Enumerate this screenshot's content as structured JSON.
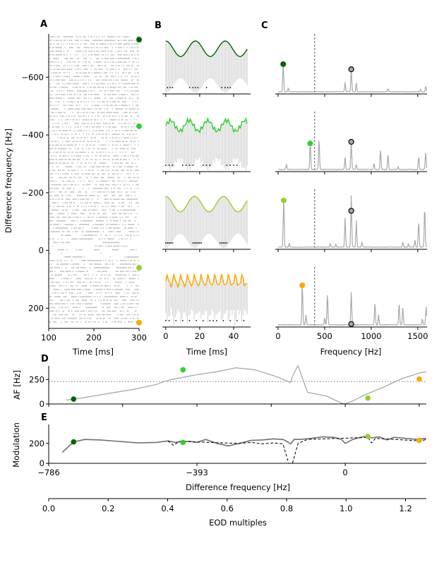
{
  "figure": {
    "panel_labels": [
      "A",
      "B",
      "C",
      "D",
      "E"
    ],
    "colors": {
      "dark_green": "#006400",
      "lime_green": "#32cd32",
      "yellow_green": "#9acd32",
      "orange": "#ffa500",
      "gray_line": "#a9a9a9",
      "light_gray": "#c8c8c8",
      "black": "#000000"
    }
  },
  "chart_data": [
    {
      "panel": "A",
      "type": "scatter",
      "title": "",
      "xlabel": "Time [ms]",
      "ylabel": "Difference frequency [Hz]",
      "xlim": [
        100,
        300
      ],
      "ylim": [
        270,
        -750
      ],
      "xticks": [
        "100",
        "200",
        "300"
      ],
      "yticks": [
        "−600",
        "−400",
        "−200",
        "0",
        "200"
      ],
      "ytick_values": [
        -600,
        -400,
        -200,
        0,
        200
      ],
      "description": "Spike raster: rows of spike times at each difference frequency",
      "marked_rows": [
        {
          "df": -730,
          "color": "dark_green"
        },
        {
          "df": -430,
          "color": "lime_green"
        },
        {
          "df": 60,
          "color": "yellow_green"
        },
        {
          "df": 250,
          "color": "orange"
        }
      ]
    },
    {
      "panel": "B",
      "type": "line",
      "xlabel": "Time [ms]",
      "xlim": [
        -2,
        50
      ],
      "xticks": [
        "0",
        "20",
        "40"
      ],
      "xtick_values": [
        0,
        20,
        40
      ],
      "rows": [
        {
          "color": "dark_green",
          "beat_period_ms": 17.5,
          "envelope": "smooth",
          "spike_groups": [
            [
              1,
              2.5,
              4
            ],
            [
              14,
              16,
              17.5,
              19
            ],
            [
              24
            ],
            [
              33,
              35,
              36.5,
              38
            ]
          ]
        },
        {
          "color": "lime_green",
          "beat_period_ms": 11,
          "envelope": "jagged",
          "spike_groups": [
            [
              0,
              2,
              4
            ],
            [
              10,
              12,
              14,
              16
            ],
            [
              22,
              24,
              26
            ],
            [
              36,
              38,
              40,
              42
            ]
          ]
        },
        {
          "color": "yellow_green",
          "beat_period_ms": 17,
          "envelope": "smooth",
          "spike_groups": [
            [
              0,
              1,
              2,
              3,
              4
            ],
            [
              16,
              17,
              18,
              19,
              20,
              21
            ],
            [
              32,
              33,
              34,
              35,
              36
            ]
          ]
        },
        {
          "color": "orange",
          "beat_period_ms": 4,
          "envelope": "jagged",
          "spike_groups": [
            [
              0,
              2
            ],
            [
              6
            ],
            [
              10
            ],
            [
              14
            ],
            [
              18
            ],
            [
              22
            ],
            [
              26,
              28
            ],
            [
              30
            ],
            [
              34
            ],
            [
              38
            ],
            [
              42
            ],
            [
              46
            ]
          ]
        }
      ]
    },
    {
      "panel": "C",
      "type": "line",
      "xlabel": "Frequency [Hz]",
      "xlim": [
        -30,
        1600
      ],
      "xticks": [
        "0",
        "500",
        "1000",
        "1500"
      ],
      "xtick_values": [
        0,
        500,
        1000,
        1500
      ],
      "vline_hz": 393,
      "rows": [
        {
          "color": "dark_green",
          "marker_hz": 55,
          "marker_height": 0.55,
          "eod_marker_hz": 786,
          "eod_marker_height": 0.45,
          "peaks": [
            [
              55,
              0.55
            ],
            [
              110,
              0.07
            ],
            [
              720,
              0.18
            ],
            [
              786,
              0.45
            ],
            [
              840,
              0.17
            ],
            [
              1180,
              0.06
            ],
            [
              1530,
              0.05
            ],
            [
              1585,
              0.11
            ]
          ]
        },
        {
          "color": "lime_green",
          "marker_hz": 345,
          "marker_height": 0.52,
          "eod_marker_hz": 786,
          "eod_marker_height": 0.55,
          "peaks": [
            [
              90,
              0.1
            ],
            [
              345,
              0.52
            ],
            [
              440,
              0.6
            ],
            [
              720,
              0.23
            ],
            [
              786,
              0.55
            ],
            [
              840,
              0.1
            ],
            [
              1030,
              0.12
            ],
            [
              1100,
              0.4
            ],
            [
              1180,
              0.3
            ],
            [
              1290,
              0.05
            ],
            [
              1510,
              0.25
            ],
            [
              1585,
              0.33
            ]
          ]
        },
        {
          "color": "yellow_green",
          "marker_hz": 60,
          "marker_height": 0.92,
          "eod_marker_hz": 786,
          "eod_marker_height": 0.72,
          "peaks": [
            [
              60,
              0.92
            ],
            [
              120,
              0.08
            ],
            [
              560,
              0.07
            ],
            [
              620,
              0.05
            ],
            [
              720,
              0.57
            ],
            [
              786,
              1.0
            ],
            [
              840,
              0.52
            ],
            [
              900,
              0.1
            ],
            [
              1340,
              0.1
            ],
            [
              1400,
              0.07
            ],
            [
              1470,
              0.14
            ],
            [
              1510,
              0.5
            ],
            [
              1575,
              0.8
            ]
          ]
        },
        {
          "color": "orange",
          "marker_hz": 260,
          "marker_height": 0.78,
          "eod_marker_hz": 786,
          "eod_marker_height": 0.03,
          "peaks": [
            [
              260,
              0.8
            ],
            [
              300,
              0.19
            ],
            [
              500,
              0.13
            ],
            [
              530,
              0.62
            ],
            [
              786,
              0.63
            ],
            [
              1040,
              0.44
            ],
            [
              1080,
              0.2
            ],
            [
              1300,
              0.42
            ],
            [
              1340,
              0.35
            ],
            [
              1550,
              0.12
            ],
            [
              1590,
              0.35
            ]
          ]
        }
      ]
    },
    {
      "panel": "D",
      "type": "line",
      "ylabel": "AF [Hz]",
      "xlim": [
        -786,
        215
      ],
      "ylim": [
        0,
        390
      ],
      "yticks": [
        "0",
        "250"
      ],
      "ytick_values": [
        0,
        250
      ],
      "hline": 230,
      "series": [
        {
          "name": "AF",
          "x": [
            -740,
            -700,
            -640,
            -560,
            -500,
            -480,
            -460,
            -420,
            -393,
            -340,
            -290,
            -240,
            -190,
            -145,
            -140,
            -130,
            -125,
            -100,
            -50,
            -10,
            0,
            20,
            50,
            100,
            150,
            200,
            215
          ],
          "y": [
            40,
            60,
            100,
            150,
            200,
            230,
            250,
            280,
            300,
            330,
            370,
            350,
            290,
            220,
            280,
            360,
            390,
            120,
            80,
            10,
            0,
            30,
            90,
            170,
            260,
            320,
            330
          ]
        }
      ],
      "markers": [
        {
          "x": -720,
          "y": 50,
          "color": "dark_green"
        },
        {
          "x": -430,
          "y": 350,
          "color": "lime_green"
        },
        {
          "x": 60,
          "y": 60,
          "color": "yellow_green"
        },
        {
          "x": 240,
          "y": 255,
          "color": "orange"
        }
      ]
    },
    {
      "panel": "E",
      "type": "line",
      "ylabel": "Modulation",
      "xlabel": "Difference frequency [Hz]",
      "xlim": [
        -786,
        215
      ],
      "ylim": [
        0,
        390
      ],
      "xticks": [
        "−786",
        "−393",
        "0"
      ],
      "xtick_values": [
        -786,
        -393,
        0
      ],
      "yticks": [
        "0",
        "200"
      ],
      "ytick_values": [
        0,
        200
      ],
      "series": [
        {
          "name": "solid",
          "style": "solid",
          "x": [
            -750,
            -720,
            -690,
            -650,
            -600,
            -550,
            -500,
            -470,
            -450,
            -430,
            -410,
            -393,
            -370,
            -340,
            -310,
            -280,
            -250,
            -220,
            -190,
            -165,
            -155,
            -145,
            -135,
            -120,
            -90,
            -60,
            -30,
            -10,
            0,
            20,
            50,
            70,
            90,
            110,
            130,
            160,
            190,
            215
          ],
          "y": [
            110,
            215,
            240,
            235,
            220,
            205,
            210,
            225,
            210,
            220,
            220,
            210,
            240,
            200,
            175,
            200,
            230,
            235,
            245,
            240,
            220,
            195,
            240,
            240,
            250,
            265,
            260,
            240,
            200,
            240,
            270,
            255,
            265,
            235,
            260,
            250,
            240,
            250
          ]
        },
        {
          "name": "dashed",
          "style": "dashed",
          "x": [
            -470,
            -455,
            -440,
            -280,
            -250,
            -220,
            -190,
            -165,
            -150,
            -140,
            -125,
            -100,
            60,
            70,
            80,
            200,
            215
          ],
          "y": [
            225,
            180,
            220,
            200,
            210,
            195,
            205,
            195,
            0,
            0,
            200,
            240,
            260,
            205,
            250,
            225,
            240
          ]
        }
      ],
      "markers": [
        {
          "x": -720,
          "y": 215,
          "color": "dark_green"
        },
        {
          "x": -430,
          "y": 210,
          "color": "lime_green"
        },
        {
          "x": 60,
          "y": 270,
          "color": "yellow_green"
        },
        {
          "x": 240,
          "y": 230,
          "color": "orange"
        }
      ]
    },
    {
      "panel": "secondary-axis",
      "type": "line",
      "xlabel": "EOD multiples",
      "xlim": [
        0,
        1.27
      ],
      "xticks": [
        "0.0",
        "0.2",
        "0.4",
        "0.6",
        "0.8",
        "1.0",
        "1.2"
      ],
      "xtick_values": [
        0,
        0.2,
        0.4,
        0.6,
        0.8,
        1.0,
        1.2
      ]
    }
  ]
}
